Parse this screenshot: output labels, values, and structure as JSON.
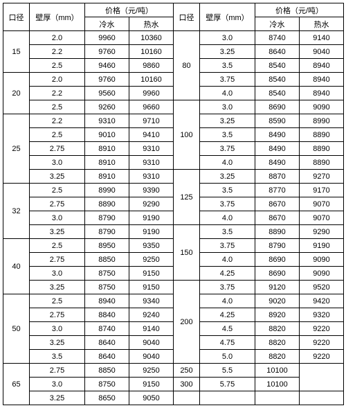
{
  "headers": {
    "diameter": "口径",
    "thickness": "壁厚（mm）",
    "price_group": "价格（元/吨）",
    "cold": "冷水",
    "hot": "热水"
  },
  "fontsize": 11,
  "border_color": "#000000",
  "text_color": "#000000",
  "background_color": "#ffffff",
  "left": {
    "groups": [
      {
        "dia": "15",
        "rows": [
          {
            "t": "2.0",
            "cold": "9960",
            "hot": "10360"
          },
          {
            "t": "2.2",
            "cold": "9760",
            "hot": "10160"
          },
          {
            "t": "2.5",
            "cold": "9460",
            "hot": "9860"
          }
        ]
      },
      {
        "dia": "20",
        "rows": [
          {
            "t": "2.0",
            "cold": "9760",
            "hot": "10160"
          },
          {
            "t": "2.2",
            "cold": "9560",
            "hot": "9960"
          },
          {
            "t": "2.5",
            "cold": "9260",
            "hot": "9660"
          }
        ]
      },
      {
        "dia": "25",
        "rows": [
          {
            "t": "2.2",
            "cold": "9310",
            "hot": "9710"
          },
          {
            "t": "2.5",
            "cold": "9010",
            "hot": "9410"
          },
          {
            "t": "2.75",
            "cold": "8910",
            "hot": "9310"
          },
          {
            "t": "3.0",
            "cold": "8910",
            "hot": "9310"
          },
          {
            "t": "3.25",
            "cold": "8910",
            "hot": "9310"
          }
        ]
      },
      {
        "dia": "32",
        "rows": [
          {
            "t": "2.5",
            "cold": "8990",
            "hot": "9390"
          },
          {
            "t": "2.75",
            "cold": "8890",
            "hot": "9290"
          },
          {
            "t": "3.0",
            "cold": "8790",
            "hot": "9190"
          },
          {
            "t": "3.25",
            "cold": "8790",
            "hot": "9190"
          }
        ]
      },
      {
        "dia": "40",
        "rows": [
          {
            "t": "2.5",
            "cold": "8950",
            "hot": "9350"
          },
          {
            "t": "2.75",
            "cold": "8850",
            "hot": "9250"
          },
          {
            "t": "3.0",
            "cold": "8750",
            "hot": "9150"
          },
          {
            "t": "3.25",
            "cold": "8750",
            "hot": "9150"
          }
        ]
      },
      {
        "dia": "50",
        "rows": [
          {
            "t": "2.5",
            "cold": "8940",
            "hot": "9340"
          },
          {
            "t": "2.75",
            "cold": "8840",
            "hot": "9240"
          },
          {
            "t": "3.0",
            "cold": "8740",
            "hot": "9140"
          },
          {
            "t": "3.25",
            "cold": "8640",
            "hot": "9040"
          },
          {
            "t": "3.5",
            "cold": "8640",
            "hot": "9040"
          }
        ]
      },
      {
        "dia": "65",
        "rows": [
          {
            "t": "2.75",
            "cold": "8850",
            "hot": "9250"
          },
          {
            "t": "3.0",
            "cold": "8750",
            "hot": "9150"
          },
          {
            "t": "3.25",
            "cold": "8650",
            "hot": "9050"
          }
        ]
      }
    ]
  },
  "right": {
    "groups": [
      {
        "dia": "80",
        "rows": [
          {
            "t": "3.0",
            "cold": "8740",
            "hot": "9140"
          },
          {
            "t": "3.25",
            "cold": "8640",
            "hot": "9040"
          },
          {
            "t": "3.5",
            "cold": "8540",
            "hot": "8940"
          },
          {
            "t": "3.75",
            "cold": "8540",
            "hot": "8940"
          },
          {
            "t": "4.0",
            "cold": "8540",
            "hot": "8940"
          }
        ]
      },
      {
        "dia": "100",
        "rows": [
          {
            "t": "3.0",
            "cold": "8690",
            "hot": "9090"
          },
          {
            "t": "3.25",
            "cold": "8590",
            "hot": "8990"
          },
          {
            "t": "3.5",
            "cold": "8490",
            "hot": "8890"
          },
          {
            "t": "3.75",
            "cold": "8490",
            "hot": "8890"
          },
          {
            "t": "4.0",
            "cold": "8490",
            "hot": "8890"
          }
        ]
      },
      {
        "dia": "125",
        "rows": [
          {
            "t": "3.25",
            "cold": "8870",
            "hot": "9270"
          },
          {
            "t": "3.5",
            "cold": "8770",
            "hot": "9170"
          },
          {
            "t": "3.75",
            "cold": "8670",
            "hot": "9070"
          },
          {
            "t": "4.0",
            "cold": "8670",
            "hot": "9070"
          }
        ]
      },
      {
        "dia": "150",
        "rows": [
          {
            "t": "3.5",
            "cold": "8890",
            "hot": "9290"
          },
          {
            "t": "3.75",
            "cold": "8790",
            "hot": "9190"
          },
          {
            "t": "4.0",
            "cold": "8690",
            "hot": "9090"
          },
          {
            "t": "4.25",
            "cold": "8690",
            "hot": "9090"
          }
        ]
      },
      {
        "dia": "200",
        "rows": [
          {
            "t": "3.75",
            "cold": "9120",
            "hot": "9520"
          },
          {
            "t": "4.0",
            "cold": "9020",
            "hot": "9420"
          },
          {
            "t": "4.25",
            "cold": "8920",
            "hot": "9320"
          },
          {
            "t": "4.5",
            "cold": "8820",
            "hot": "9220"
          },
          {
            "t": "4.75",
            "cold": "8820",
            "hot": "9220"
          },
          {
            "t": "5.0",
            "cold": "8820",
            "hot": "9220"
          }
        ]
      },
      {
        "dia": "250",
        "rows": [
          {
            "t": "5.5",
            "cold": "10100",
            "hot": "",
            "mergeHotDown": true
          }
        ]
      },
      {
        "dia": "300",
        "rows": [
          {
            "t": "5.75",
            "cold": "10100",
            "hot": "",
            "hideHot": true
          }
        ]
      }
    ],
    "trailing_blank_rows": 1
  }
}
